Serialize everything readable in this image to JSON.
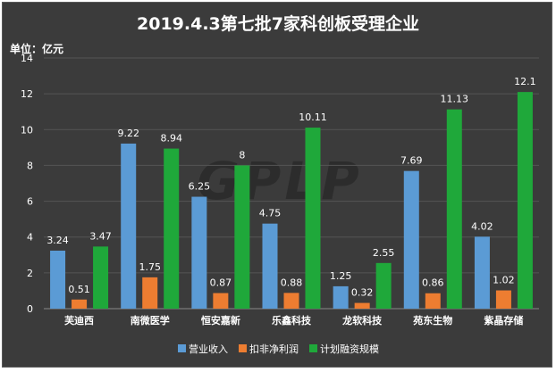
{
  "chart_data": {
    "type": "bar",
    "title": "2019.4.3第七批7家科创板受理企业",
    "unit_label": "单位：亿元",
    "watermark": "GPLP",
    "categories": [
      "芙迪西",
      "南微医学",
      "恒安嘉新",
      "乐鑫科技",
      "龙软科技",
      "苑东生物",
      "紫晶存储"
    ],
    "series": [
      {
        "name": "营业收入",
        "color": "#5b9bd5",
        "values": [
          3.24,
          9.22,
          6.25,
          4.75,
          1.25,
          7.69,
          4.02
        ]
      },
      {
        "name": "扣非净利润",
        "color": "#ed7d31",
        "values": [
          0.51,
          1.75,
          0.87,
          0.88,
          0.32,
          0.86,
          1.02
        ]
      },
      {
        "name": "计划融资规模",
        "color": "#1fa83a",
        "values": [
          3.47,
          8.94,
          8,
          10.11,
          2.55,
          11.13,
          12.1
        ]
      }
    ],
    "ylim": [
      0,
      14
    ],
    "yticks": [
      0,
      2,
      4,
      6,
      8,
      10,
      12,
      14
    ],
    "grid": true,
    "legend_position": "bottom"
  }
}
